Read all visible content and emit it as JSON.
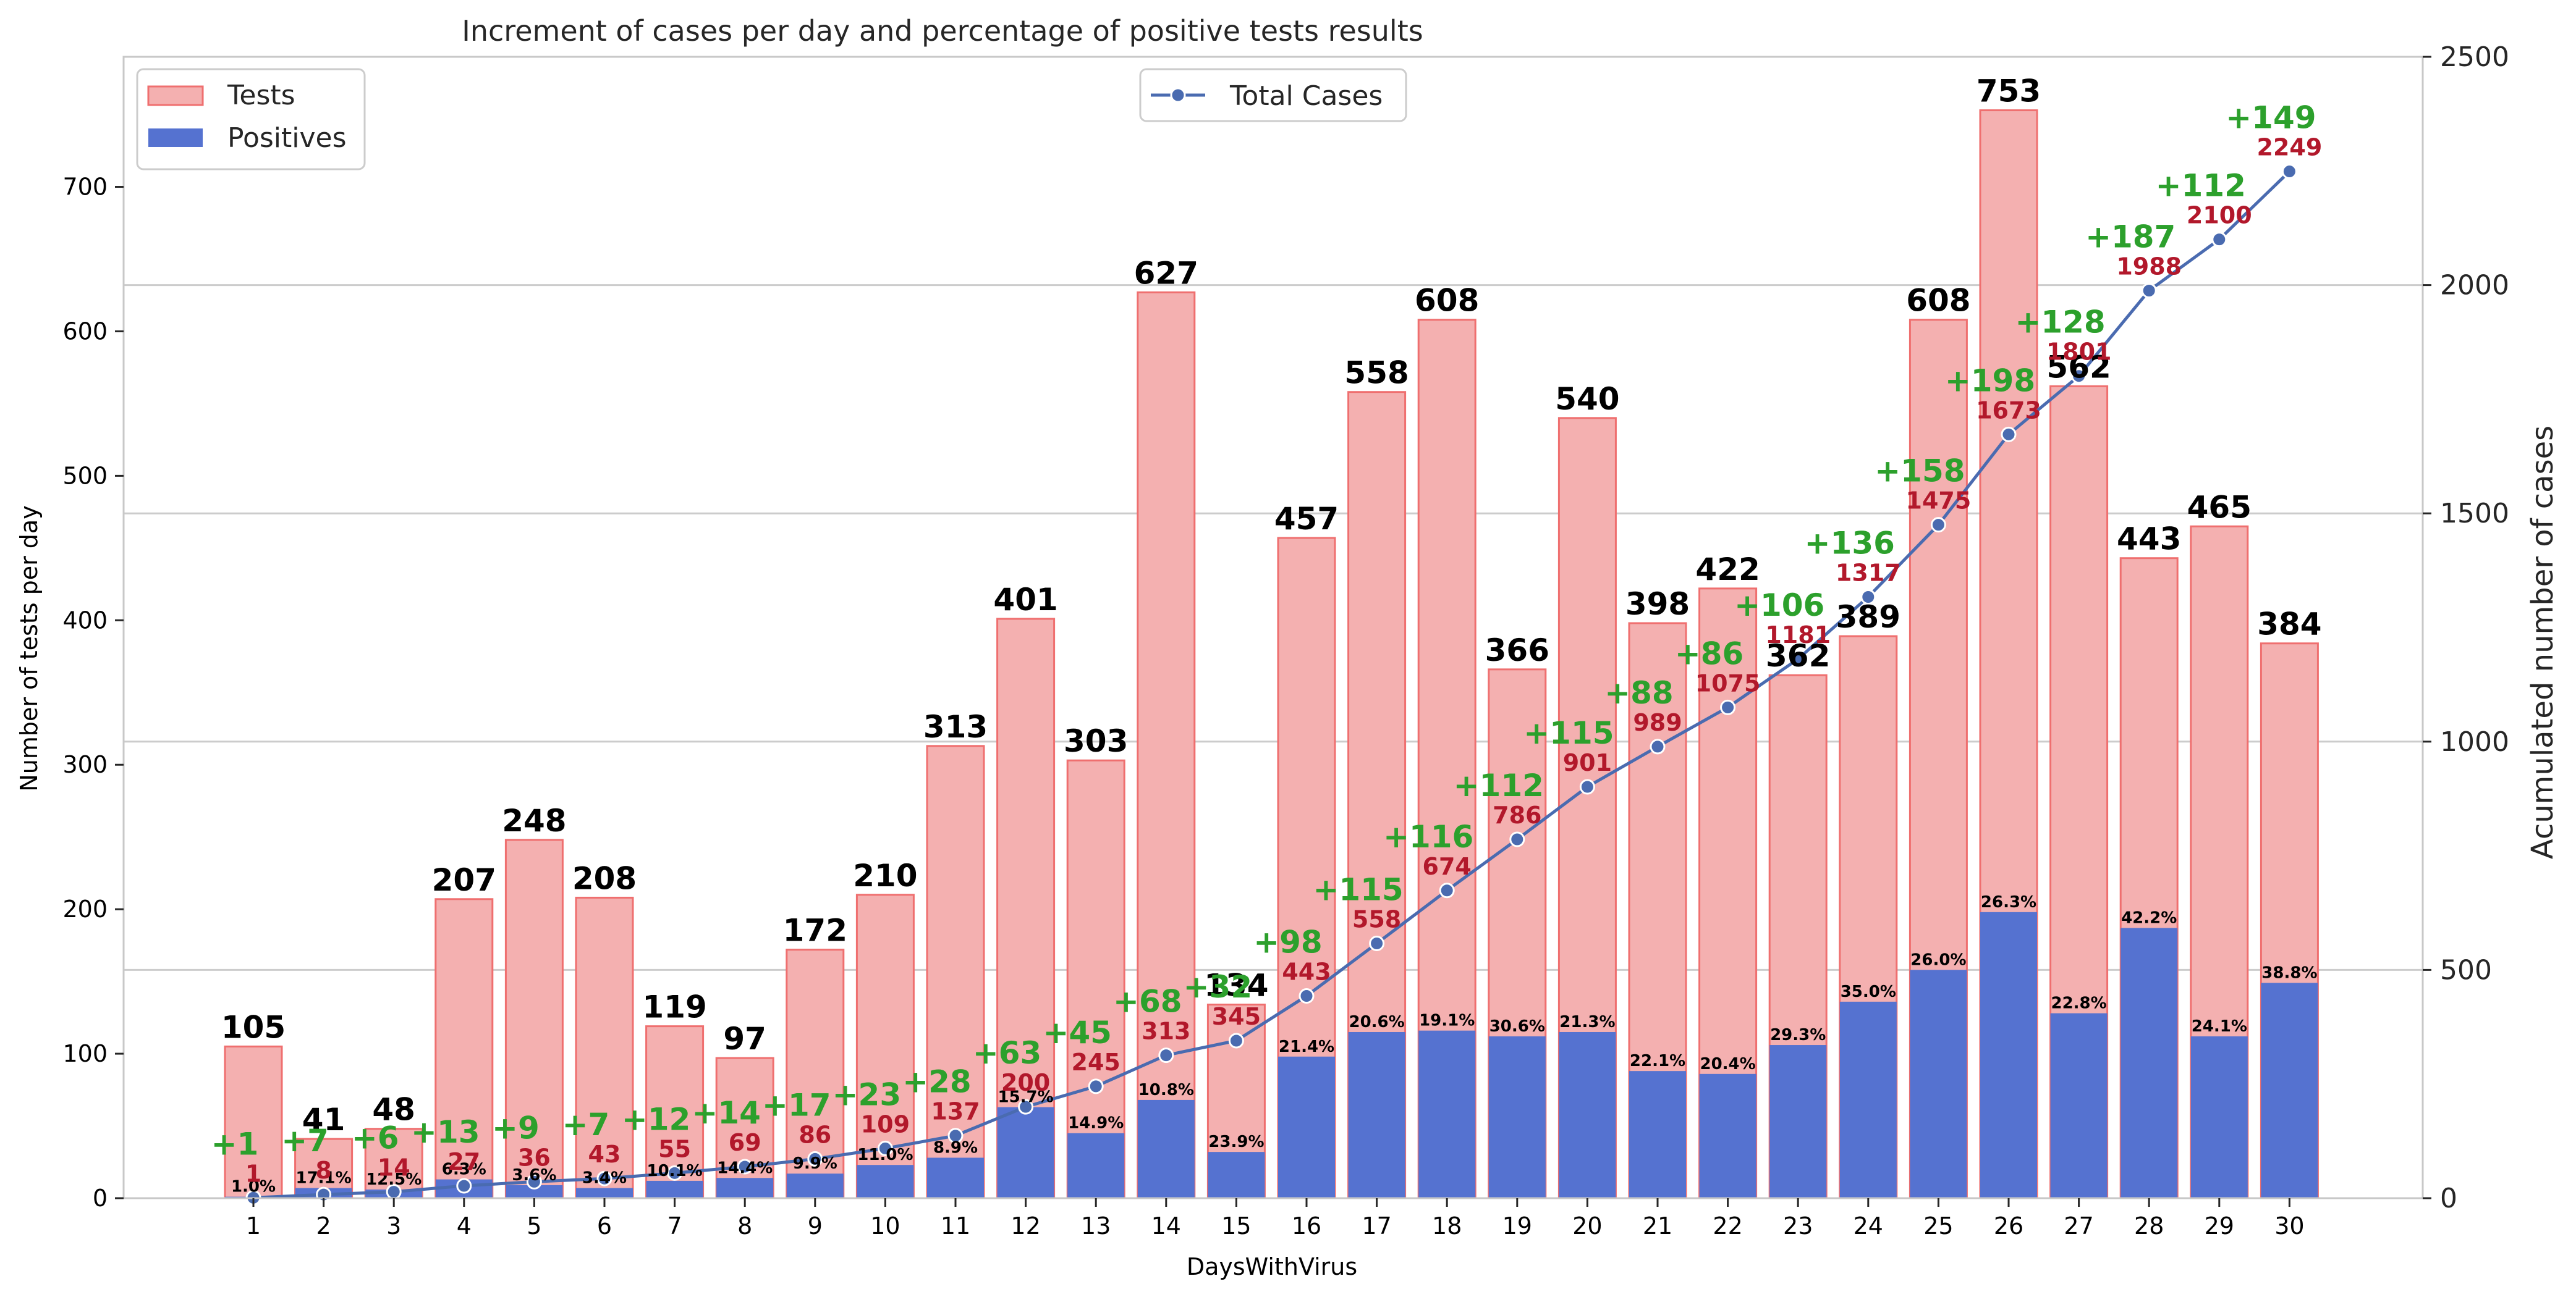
{
  "chart_data": {
    "type": "bar",
    "title": "Increment of cases per day and percentage of positive tests results",
    "xlabel": "DaysWithVirus",
    "ylabel": "Number of tests per day",
    "ylabel_right": "Acumulated number of cases",
    "categories": [
      "1",
      "2",
      "3",
      "4",
      "5",
      "6",
      "7",
      "8",
      "9",
      "10",
      "11",
      "12",
      "13",
      "14",
      "15",
      "16",
      "17",
      "18",
      "19",
      "20",
      "21",
      "22",
      "23",
      "24",
      "25",
      "26",
      "27",
      "28",
      "29",
      "30"
    ],
    "ylim": [
      0,
      790
    ],
    "yticks": [
      "0",
      "100",
      "200",
      "300",
      "400",
      "500",
      "600",
      "700"
    ],
    "ylim_right": [
      0,
      2500
    ],
    "yticks_right": [
      "0",
      "500",
      "1000",
      "1500",
      "2000",
      "2500"
    ],
    "grid": "horizontal (right axis)",
    "series": [
      {
        "name": "Tests",
        "axis": "left",
        "color": "#f4b0b0",
        "edge_color": "#ef6f6f",
        "values": [
          105,
          41,
          48,
          207,
          248,
          208,
          119,
          97,
          172,
          210,
          313,
          401,
          303,
          627,
          134,
          457,
          558,
          608,
          366,
          540,
          398,
          422,
          362,
          389,
          608,
          753,
          562,
          443,
          465,
          384
        ],
        "labels": [
          "105",
          "41",
          "48",
          "207",
          "248",
          "208",
          "119",
          "97",
          "172",
          "210",
          "313",
          "401",
          "303",
          "627",
          "134",
          "457",
          "558",
          "608",
          "366",
          "540",
          "398",
          "422",
          "362",
          "389",
          "608",
          "753",
          "562",
          "443",
          "465",
          "384"
        ]
      },
      {
        "name": "Positives",
        "axis": "left",
        "color": "#5572d0",
        "values": [
          1,
          7,
          6,
          13,
          9,
          7,
          12,
          14,
          17,
          23,
          28,
          63,
          45,
          68,
          32,
          98,
          115,
          116,
          112,
          115,
          88,
          86,
          106,
          136,
          158,
          198,
          128,
          187,
          112,
          149
        ],
        "labels": [
          "1.0%",
          "17.1%",
          "12.5%",
          "6.3%",
          "3.6%",
          "3.4%",
          "10.1%",
          "14.4%",
          "9.9%",
          "11.0%",
          "8.9%",
          "15.7%",
          "14.9%",
          "10.8%",
          "23.9%",
          "21.4%",
          "20.6%",
          "19.1%",
          "30.6%",
          "21.3%",
          "22.1%",
          "20.4%",
          "29.3%",
          "35.0%",
          "26.0%",
          "26.3%",
          "22.8%",
          "42.2%",
          "24.1%",
          "38.8%"
        ]
      },
      {
        "name": "Total Cases",
        "axis": "right",
        "color": "#4a6bb0",
        "values": [
          1,
          8,
          14,
          27,
          36,
          43,
          55,
          69,
          86,
          109,
          137,
          200,
          245,
          313,
          345,
          443,
          558,
          674,
          786,
          901,
          989,
          1075,
          1181,
          1317,
          1475,
          1673,
          1801,
          1988,
          2100,
          2249
        ],
        "labels": [
          "1",
          "8",
          "14",
          "27",
          "36",
          "43",
          "55",
          "69",
          "86",
          "109",
          "137",
          "200",
          "245",
          "313",
          "345",
          "443",
          "558",
          "674",
          "786",
          "901",
          "989",
          "1075",
          "1181",
          "1317",
          "1475",
          "1673",
          "1801",
          "1988",
          "2100",
          "2249"
        ],
        "increment_labels": [
          "+1",
          "+7",
          "+6",
          "+13",
          "+9",
          "+7",
          "+12",
          "+14",
          "+17",
          "+23",
          "+28",
          "+63",
          "+45",
          "+68",
          "+32",
          "+98",
          "+115",
          "+116",
          "+112",
          "+115",
          "+88",
          "+86",
          "+106",
          "+136",
          "+158",
          "+198",
          "+128",
          "+187",
          "+112",
          "+149"
        ]
      }
    ],
    "legend_left": {
      "placement": "top-left",
      "items": [
        "Tests",
        "Positives"
      ]
    },
    "legend_right": {
      "placement": "top-center",
      "items": [
        "Total Cases"
      ]
    }
  }
}
